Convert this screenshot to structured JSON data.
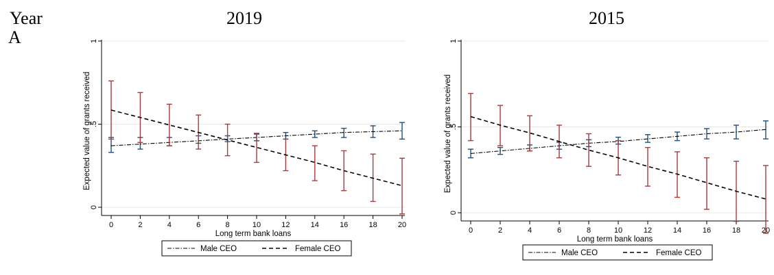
{
  "header": {
    "year_label": "Year",
    "panel_letter": "A"
  },
  "colors": {
    "male_ci": "#1f4e79",
    "female_ci": "#a83a3a",
    "grid": "#e8e8e8"
  },
  "chart_data": [
    {
      "type": "line",
      "title": "2019",
      "xlabel": "Long term bank loans",
      "ylabel": "Expected value of grants received",
      "xlim": [
        0,
        20
      ],
      "ylim": [
        0,
        1
      ],
      "xticks": [
        0,
        2,
        4,
        6,
        8,
        10,
        12,
        14,
        16,
        18,
        20
      ],
      "yticks": [
        0,
        0.5,
        1
      ],
      "ytick_labels": [
        "0",
        ".5",
        "1"
      ],
      "grid": true,
      "legend_position": "bottom",
      "x": [
        0,
        2,
        4,
        6,
        8,
        10,
        12,
        14,
        16,
        18,
        20
      ],
      "series": [
        {
          "name": "Male CEO",
          "line_style": "dash-dot",
          "values": [
            0.37,
            0.38,
            0.39,
            0.4,
            0.41,
            0.42,
            0.43,
            0.44,
            0.45,
            0.455,
            0.46
          ],
          "ci_low": [
            0.33,
            0.35,
            0.37,
            0.385,
            0.395,
            0.4,
            0.41,
            0.42,
            0.42,
            0.42,
            0.41
          ],
          "ci_high": [
            0.42,
            0.42,
            0.42,
            0.43,
            0.43,
            0.44,
            0.45,
            0.46,
            0.475,
            0.49,
            0.51
          ]
        },
        {
          "name": "Female CEO",
          "line_style": "dash",
          "values": [
            0.585,
            0.54,
            0.495,
            0.45,
            0.405,
            0.36,
            0.315,
            0.27,
            0.22,
            0.175,
            0.13
          ],
          "ci_low": [
            0.41,
            0.39,
            0.37,
            0.35,
            0.31,
            0.27,
            0.22,
            0.16,
            0.1,
            0.035,
            -0.04
          ],
          "ci_high": [
            0.76,
            0.69,
            0.62,
            0.555,
            0.5,
            0.445,
            0.41,
            0.37,
            0.34,
            0.32,
            0.295
          ]
        }
      ]
    },
    {
      "type": "line",
      "title": "2015",
      "xlabel": "Long term bank loans",
      "ylabel": "Expected value of grants received",
      "xlim": [
        0,
        20
      ],
      "ylim": [
        0,
        1
      ],
      "xticks": [
        0,
        2,
        4,
        6,
        8,
        10,
        12,
        14,
        16,
        18,
        20
      ],
      "yticks": [
        0,
        0.5,
        1
      ],
      "ytick_labels": [
        "0",
        ".5",
        "1"
      ],
      "grid": true,
      "legend_position": "bottom",
      "x": [
        0,
        2,
        4,
        6,
        8,
        10,
        12,
        14,
        16,
        18,
        20
      ],
      "series": [
        {
          "name": "Male CEO",
          "line_style": "dash-dot",
          "values": [
            0.345,
            0.36,
            0.375,
            0.39,
            0.405,
            0.415,
            0.43,
            0.445,
            0.46,
            0.47,
            0.485
          ],
          "ci_low": [
            0.32,
            0.34,
            0.36,
            0.37,
            0.385,
            0.4,
            0.41,
            0.42,
            0.43,
            0.43,
            0.43
          ],
          "ci_high": [
            0.37,
            0.38,
            0.395,
            0.41,
            0.425,
            0.44,
            0.455,
            0.47,
            0.49,
            0.51,
            0.535
          ]
        },
        {
          "name": "Female CEO",
          "line_style": "dash",
          "values": [
            0.56,
            0.51,
            0.465,
            0.415,
            0.365,
            0.32,
            0.27,
            0.225,
            0.175,
            0.125,
            0.08
          ],
          "ci_low": [
            0.42,
            0.39,
            0.36,
            0.32,
            0.27,
            0.22,
            0.155,
            0.09,
            0.02,
            -0.05,
            -0.12
          ],
          "ci_high": [
            0.695,
            0.625,
            0.565,
            0.51,
            0.46,
            0.42,
            0.38,
            0.355,
            0.32,
            0.3,
            0.275
          ]
        }
      ]
    }
  ]
}
